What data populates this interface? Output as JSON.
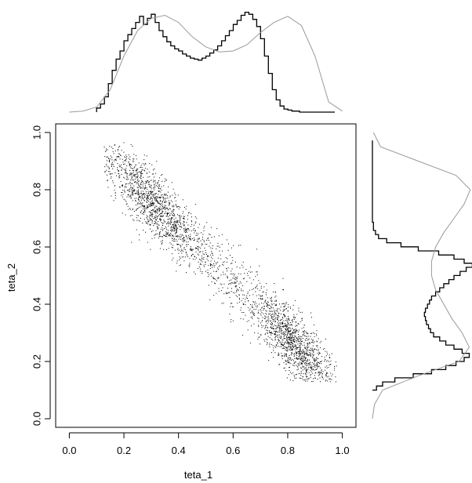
{
  "chart_data": {
    "type": "scatter",
    "title": "",
    "xlabel": "teta_1",
    "ylabel": "teta_2",
    "xlim": [
      -0.05,
      1.05
    ],
    "ylim": [
      -0.03,
      1.03
    ],
    "grid": false,
    "legend": "none",
    "x_ticks": [
      "0.0",
      "0.2",
      "0.4",
      "0.6",
      "0.8",
      "1.0"
    ],
    "y_ticks": [
      "0.0",
      "0.2",
      "0.4",
      "0.6",
      "0.8",
      "1.0"
    ],
    "scatter_description": "about 3000 points along the diagonal band teta_2 ≈ 1.04 - teta_1",
    "n_points": 3000,
    "point_color": "#000000",
    "band": {
      "x_range": [
        0.13,
        0.97
      ],
      "slope": -0.95,
      "intercept": 1.045,
      "spread_sd": 0.055
    },
    "marginal_x": {
      "type": "histogram-with-density",
      "bins_start": 0.1,
      "bin_width": 0.0143,
      "counts": [
        0.04,
        0.08,
        0.15,
        0.28,
        0.41,
        0.52,
        0.6,
        0.7,
        0.76,
        0.82,
        0.88,
        0.94,
        0.86,
        0.92,
        0.96,
        0.88,
        0.8,
        0.74,
        0.69,
        0.65,
        0.62,
        0.6,
        0.57,
        0.55,
        0.53,
        0.52,
        0.51,
        0.53,
        0.55,
        0.58,
        0.61,
        0.65,
        0.7,
        0.75,
        0.8,
        0.86,
        0.9,
        0.95,
        0.98,
        0.96,
        0.91,
        0.84,
        0.72,
        0.55,
        0.38,
        0.22,
        0.12,
        0.06,
        0.03,
        0.02,
        0.01,
        0.01,
        0.0,
        0.0,
        0.0,
        0.0,
        0.0,
        0.0,
        0.0,
        0.0,
        0.0
      ],
      "density_x": [
        0.0,
        0.05,
        0.1,
        0.15,
        0.2,
        0.25,
        0.3,
        0.35,
        0.4,
        0.45,
        0.5,
        0.55,
        0.6,
        0.65,
        0.7,
        0.75,
        0.8,
        0.85,
        0.9,
        0.95,
        1.0
      ],
      "density_y": [
        0.0,
        0.01,
        0.05,
        0.22,
        0.55,
        0.8,
        0.92,
        0.95,
        0.88,
        0.74,
        0.64,
        0.59,
        0.6,
        0.66,
        0.78,
        0.88,
        0.94,
        0.85,
        0.55,
        0.1,
        0.01
      ]
    },
    "marginal_y": {
      "type": "histogram-with-density",
      "bins_start": 0.1,
      "bin_width": 0.0143,
      "counts": [
        0.04,
        0.1,
        0.22,
        0.4,
        0.58,
        0.72,
        0.82,
        0.9,
        0.95,
        0.88,
        0.8,
        0.72,
        0.66,
        0.6,
        0.57,
        0.55,
        0.53,
        0.52,
        0.51,
        0.52,
        0.54,
        0.56,
        0.58,
        0.62,
        0.66,
        0.7,
        0.75,
        0.8,
        0.86,
        0.92,
        0.98,
        0.9,
        0.8,
        0.65,
        0.45,
        0.28,
        0.14,
        0.06,
        0.03,
        0.01,
        0.01,
        0.0,
        0.0,
        0.0,
        0.0,
        0.0,
        0.0,
        0.0,
        0.0,
        0.0,
        0.0,
        0.0,
        0.0,
        0.0,
        0.0,
        0.0,
        0.0,
        0.0,
        0.0,
        0.0,
        0.0
      ],
      "density_x": [
        0.0,
        0.05,
        0.1,
        0.15,
        0.2,
        0.25,
        0.3,
        0.35,
        0.4,
        0.45,
        0.5,
        0.55,
        0.6,
        0.65,
        0.7,
        0.75,
        0.8,
        0.85,
        0.9,
        0.95,
        1.0
      ],
      "density_y": [
        0.0,
        0.02,
        0.1,
        0.45,
        0.85,
        0.95,
        0.88,
        0.78,
        0.7,
        0.62,
        0.58,
        0.58,
        0.62,
        0.7,
        0.8,
        0.9,
        0.96,
        0.82,
        0.45,
        0.08,
        0.01
      ]
    },
    "colors": {
      "histogram": "#000000",
      "density": "#9a9a9a",
      "axis": "#000000",
      "background": "#ffffff"
    }
  }
}
